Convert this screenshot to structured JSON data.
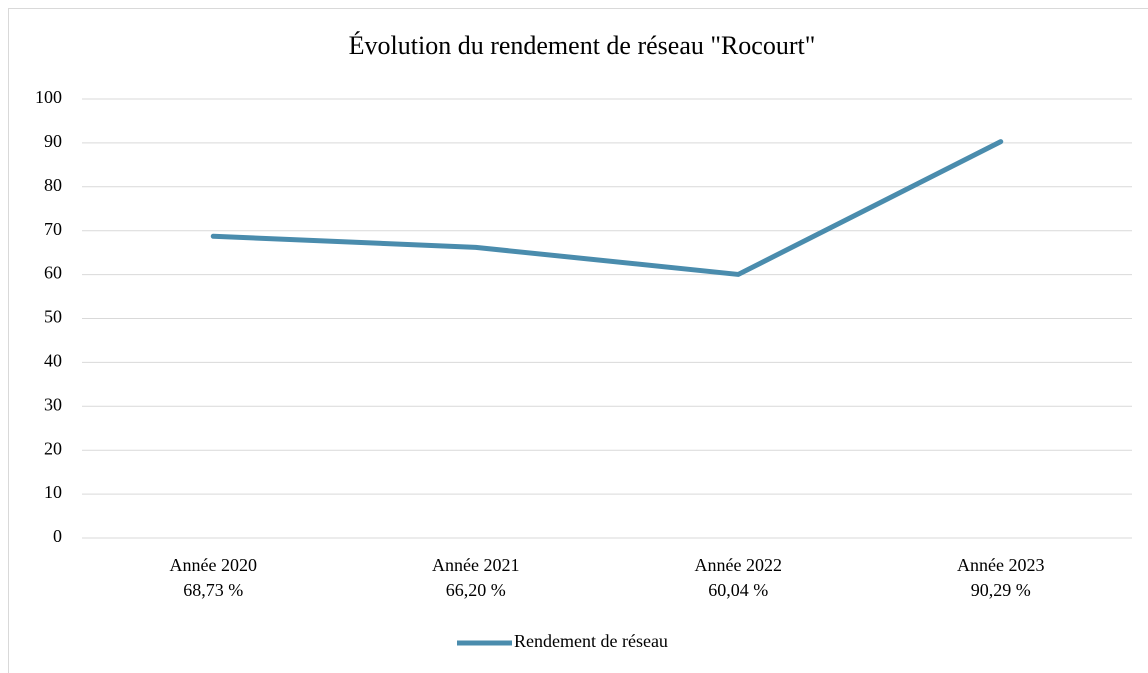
{
  "chart_data": {
    "type": "line",
    "title": "Évolution du rendement de réseau \"Rocourt\"",
    "categories": [
      "Année 2020",
      "Année 2021",
      "Année 2022",
      "Année 2023"
    ],
    "series": [
      {
        "name": "Rendement de réseau",
        "color": "#4a8cad",
        "values": [
          68.73,
          66.2,
          60.04,
          90.29
        ],
        "value_labels": [
          "68,73 %",
          "66,20 %",
          "60,04 %",
          "90,29 %"
        ]
      }
    ],
    "ylim": [
      0,
      100
    ],
    "yticks": [
      0,
      10,
      20,
      30,
      40,
      50,
      60,
      70,
      80,
      90,
      100
    ],
    "grid": true,
    "legend": "bottom"
  }
}
